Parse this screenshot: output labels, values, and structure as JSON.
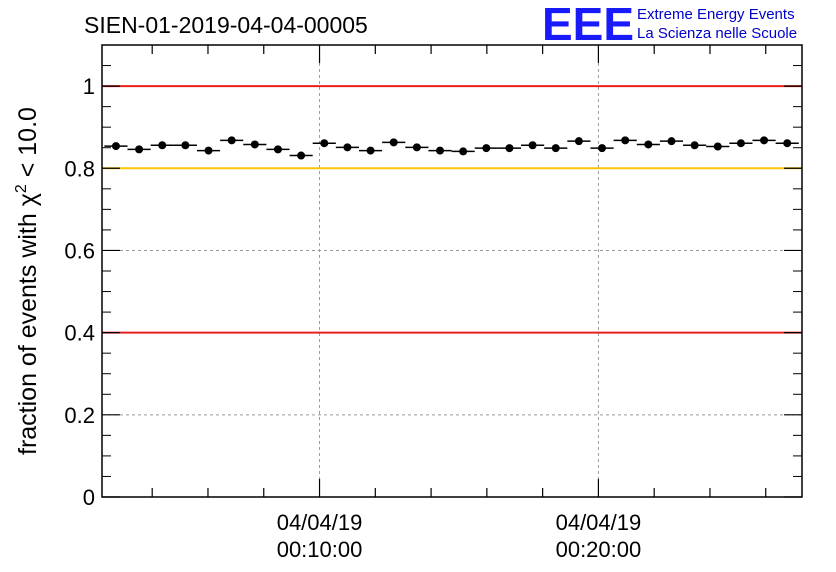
{
  "chart_data": {
    "type": "scatter",
    "title": "SIEN-01-2019-04-04-00005",
    "ylabel_prefix": "fraction of events with χ",
    "ylabel_sup": "2",
    "ylabel_suffix": " < 10.0",
    "xlabel": "",
    "ylim": [
      0,
      1.1
    ],
    "xlim_minutes": [
      2.2,
      27.3
    ],
    "y_ticks": [
      "0",
      "0.2",
      "0.4",
      "0.6",
      "0.8",
      "1"
    ],
    "y_tick_values": [
      0,
      0.2,
      0.4,
      0.6,
      0.8,
      1.0
    ],
    "x_ticks": [
      {
        "minute": 10,
        "date": "04/04/19",
        "time": "00:10:00"
      },
      {
        "minute": 20,
        "date": "04/04/19",
        "time": "00:20:00"
      }
    ],
    "reference_lines": [
      {
        "y": 1.0,
        "color": "#e8201c"
      },
      {
        "y": 0.8,
        "color": "#ffc400"
      },
      {
        "y": 0.4,
        "color": "#e8201c"
      }
    ],
    "series": [
      {
        "name": "fraction",
        "bin_width_minutes": 0.83,
        "x": [
          2.7,
          3.53,
          4.36,
          5.19,
          6.02,
          6.85,
          7.68,
          8.51,
          9.34,
          10.17,
          11.0,
          11.83,
          12.66,
          13.49,
          14.32,
          15.15,
          15.98,
          16.81,
          17.64,
          18.47,
          19.3,
          20.13,
          20.96,
          21.79,
          22.62,
          23.45,
          24.28,
          25.11,
          25.94,
          26.77
        ],
        "y": [
          0.854,
          0.846,
          0.856,
          0.856,
          0.843,
          0.868,
          0.858,
          0.846,
          0.831,
          0.861,
          0.851,
          0.843,
          0.863,
          0.851,
          0.843,
          0.841,
          0.849,
          0.849,
          0.856,
          0.849,
          0.866,
          0.849,
          0.868,
          0.858,
          0.866,
          0.856,
          0.853,
          0.861,
          0.868,
          0.861
        ]
      }
    ]
  },
  "logo": {
    "letters": "EEE",
    "line1": "Extreme Energy Events",
    "line2": "La Scienza nelle Scuole"
  },
  "colors": {
    "marker": "#000000",
    "grid": "#9a9a9a",
    "logo": "#1a1aff"
  }
}
